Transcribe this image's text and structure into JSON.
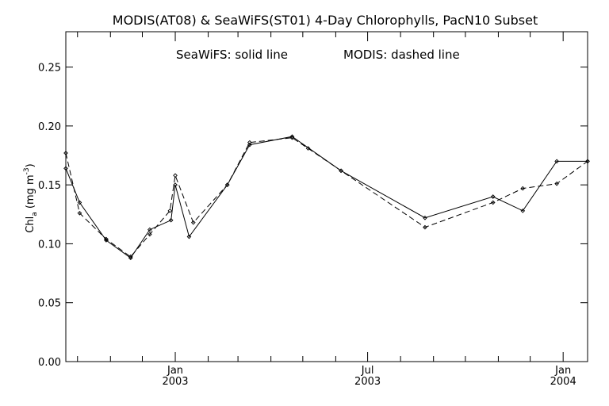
{
  "chart_data": {
    "type": "line",
    "title": "MODIS(AT08) & SeaWiFS(ST01) 4-Day Chlorophylls, PacN10 Subset",
    "annotation_left": "SeaWiFS: solid line",
    "annotation_right": "MODIS: dashed line",
    "ylabel_main": "Chl",
    "ylabel_sub": "a",
    "ylabel_units_open": " (mg m",
    "ylabel_units_sup": "-3",
    "ylabel_units_close": ")",
    "ylim": [
      0.0,
      0.28
    ],
    "xlim": [
      "2002-09-20",
      "2004-01-24"
    ],
    "yticks": [
      {
        "value": 0.0,
        "label": "0.00"
      },
      {
        "value": 0.05,
        "label": "0.05"
      },
      {
        "value": 0.1,
        "label": "0.10"
      },
      {
        "value": 0.15,
        "label": "0.15"
      },
      {
        "value": 0.2,
        "label": "0.20"
      },
      {
        "value": 0.25,
        "label": "0.25"
      }
    ],
    "xticks": [
      "2002-10-01",
      "2002-11-01",
      "2002-12-01",
      "2003-01-01",
      "2003-02-01",
      "2003-03-01",
      "2003-04-01",
      "2003-05-01",
      "2003-06-01",
      "2003-07-01",
      "2003-08-01",
      "2003-09-01",
      "2003-10-01",
      "2003-11-01",
      "2003-12-01",
      "2004-01-01"
    ],
    "major_xticks": [
      {
        "date": "2003-01-01",
        "month": "Jan",
        "year": "2003"
      },
      {
        "date": "2003-07-01",
        "month": "Jul",
        "year": "2003"
      },
      {
        "date": "2004-01-01",
        "month": "Jan",
        "year": "2004"
      }
    ],
    "series": [
      {
        "name": "SeaWiFS",
        "style": "solid",
        "color": "#000000",
        "x": [
          "2002-09-20",
          "2002-10-03",
          "2002-10-28",
          "2002-11-20",
          "2002-12-08",
          "2002-12-28",
          "2003-01-01",
          "2003-01-14",
          "2003-02-19",
          "2003-03-12",
          "2003-04-21",
          "2003-06-06",
          "2003-08-24",
          "2003-10-27",
          "2003-11-24",
          "2003-12-26",
          "2004-01-24"
        ],
        "y": [
          0.164,
          0.135,
          0.103,
          0.088,
          0.112,
          0.12,
          0.15,
          0.106,
          0.15,
          0.184,
          0.191,
          0.162,
          0.122,
          0.14,
          0.128,
          0.17,
          0.17
        ]
      },
      {
        "name": "MODIS",
        "style": "dashed",
        "color": "#000000",
        "x": [
          "2002-09-20",
          "2002-10-03",
          "2002-10-28",
          "2002-11-20",
          "2002-12-08",
          "2002-12-27",
          "2003-01-01",
          "2003-01-18",
          "2003-02-19",
          "2003-03-12",
          "2003-04-21",
          "2003-05-06",
          "2003-06-06",
          "2003-08-24",
          "2003-10-27",
          "2003-11-24",
          "2003-12-26",
          "2004-01-24"
        ],
        "y": [
          0.177,
          0.126,
          0.104,
          0.089,
          0.108,
          0.128,
          0.158,
          0.118,
          0.15,
          0.186,
          0.19,
          0.181,
          0.162,
          0.114,
          0.135,
          0.147,
          0.151,
          0.17
        ]
      }
    ]
  }
}
